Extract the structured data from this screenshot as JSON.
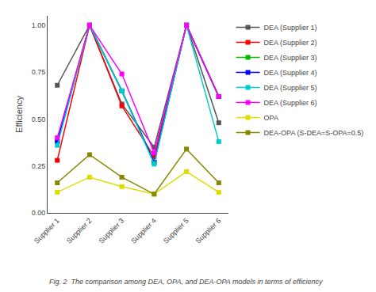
{
  "chart_data": {
    "type": "line",
    "categories": [
      "Supplier 1",
      "Supplier 2",
      "Supplier 3",
      "Supplier 4",
      "Supplier 5",
      "Supplier 6"
    ],
    "series": [
      {
        "name": "DEA (Supplier 1)",
        "color": "#555555",
        "values": [
          0.68,
          1.0,
          0.58,
          0.35,
          1.0,
          0.48
        ]
      },
      {
        "name": "DEA (Supplier 2)",
        "color": "#ff0000",
        "values": [
          0.28,
          1.0,
          0.57,
          0.3,
          1.0,
          0.62
        ]
      },
      {
        "name": "DEA (Supplier 3)",
        "color": "#00bb00",
        "values": [
          0.38,
          1.0,
          0.65,
          0.27,
          1.0,
          0.62
        ]
      },
      {
        "name": "DEA (Supplier 4)",
        "color": "#0000ff",
        "values": [
          0.38,
          1.0,
          0.65,
          0.27,
          1.0,
          0.62
        ]
      },
      {
        "name": "DEA (Supplier 5)",
        "color": "#00cccc",
        "values": [
          0.36,
          1.0,
          0.65,
          0.26,
          1.0,
          0.38
        ]
      },
      {
        "name": "DEA (Supplier 6)",
        "color": "#ff00ff",
        "values": [
          0.4,
          1.0,
          0.74,
          0.32,
          1.0,
          0.62
        ]
      },
      {
        "name": "OPA",
        "color": "#dddd00",
        "values": [
          0.11,
          0.19,
          0.14,
          0.1,
          0.22,
          0.11
        ]
      },
      {
        "name": "DEA-OPA (S-DEA=S-OPA=0.5)",
        "color": "#888800",
        "values": [
          0.16,
          0.31,
          0.19,
          0.1,
          0.34,
          0.16
        ]
      }
    ],
    "ylabel": "Efficiency",
    "ylim": [
      0.0,
      1.05
    ],
    "yticks": [
      {
        "value": 0.0,
        "label": "0.00"
      },
      0.25,
      {
        "value": 0.5,
        "label": "0.50"
      },
      0.75,
      {
        "value": 1.0,
        "label": "1.00"
      }
    ],
    "caption": "Fig. 2  The comparison among DEA, OPA, and DEA-OPA models in terms of efficiency",
    "marker": "square",
    "line_style": "solid",
    "grid": false,
    "legend": "right"
  }
}
